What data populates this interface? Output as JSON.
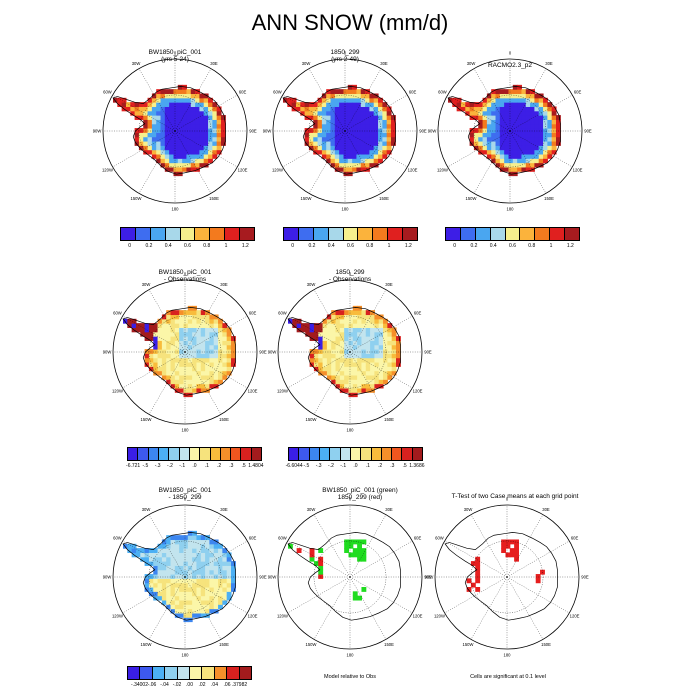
{
  "title": "ANN SNOW (mm/d)",
  "palette_abs": [
    "#3d1ee6",
    "#3e6df0",
    "#4aa6f0",
    "#a8d8ea",
    "#f6ef8d",
    "#fbb33c",
    "#f37a1e",
    "#e0201f",
    "#a71b1f"
  ],
  "palette_diff": [
    "#3a1ee6",
    "#3d59ef",
    "#3c86f0",
    "#4cb0f4",
    "#8fd0ef",
    "#c2e4ee",
    "#fbf6a8",
    "#f6e37d",
    "#f8bc3c",
    "#f58f2a",
    "#f0561f",
    "#d8211f",
    "#a31b1d"
  ],
  "colors": {
    "ice": "#e3e3e3",
    "coast": "#000000",
    "sig_green": "#20dc20",
    "sig_red": "#e61e1e"
  },
  "icon_labels": {
    "north": "0",
    "n30e": "30E",
    "n60e": "60E",
    "n90e": "90E",
    "n120e": "120E",
    "n150e": "150E",
    "n180": "180",
    "n150w": "150W",
    "n120w": "120W",
    "n90w": "90W",
    "n60w": "60W",
    "n30w": "30W"
  },
  "panels": [
    {
      "title": "BW1850_piC_001",
      "subtitle": "(yrs 5-24)",
      "type": "abs"
    },
    {
      "title": "1850_299",
      "subtitle": "(yrs 2-49)",
      "type": "abs"
    },
    {
      "title": "RACMO2.3_p2",
      "subtitle": "",
      "type": "abs"
    },
    {
      "title": "BW1850_piC_001",
      "subtitle": "- Observations",
      "type": "diff"
    },
    {
      "title": "1850_299",
      "subtitle": "- Observations",
      "type": "diff"
    },
    {
      "title": "BW1850_piC_001",
      "subtitle": "- 1850_299",
      "type": "diff2"
    },
    {
      "title": "BW1850_piC_001 (green)",
      "subtitle": "1850_299 (red)",
      "type": "sig_obs"
    },
    {
      "title": "T-Test of two Case means at each grid point",
      "subtitle": "",
      "type": "ttest"
    }
  ],
  "colorbars": [
    {
      "labels": [
        "0",
        "0.2",
        "0.4",
        "0.6",
        "0.8",
        "1",
        "1.2"
      ]
    },
    {
      "labels": [
        "0",
        "0.2",
        "0.4",
        "0.6",
        "0.8",
        "1",
        "1.2"
      ]
    },
    {
      "labels": [
        "0",
        "0.2",
        "0.4",
        "0.6",
        "0.8",
        "1",
        "1.2"
      ]
    },
    {
      "labels": [
        "-6.721",
        "-.5",
        "-.3",
        "-.2",
        "-.1",
        ".0",
        ".1",
        ".2",
        ".3",
        ".5",
        "1.4804"
      ]
    },
    {
      "labels": [
        "-6.6044",
        "-.5",
        "-.3",
        "-.2",
        "-.1",
        ".0",
        ".1",
        ".2",
        ".3",
        ".5",
        "1.3686"
      ]
    },
    {
      "labels": [
        "-.34002",
        "-.06",
        "-.04",
        "-.02",
        ".00",
        ".02",
        ".04",
        ".06",
        ".37982"
      ]
    }
  ],
  "captions": {
    "model_obs": "Model relative to Obs",
    "significance": "Cells are significant at 0.1 level"
  }
}
